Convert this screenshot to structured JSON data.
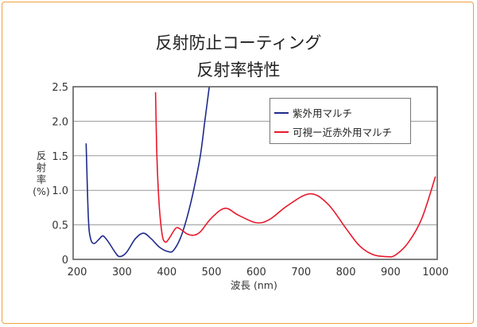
{
  "chart_data": {
    "type": "line",
    "title": "反射防止コーティング",
    "subtitle": "反射率特性",
    "xlabel": "波長 (nm)",
    "ylabel": [
      "反",
      "射",
      "率",
      "(%)"
    ],
    "xlim": [
      191,
      1004
    ],
    "ylim": [
      0,
      2.5
    ],
    "xticks": [
      200,
      300,
      400,
      500,
      600,
      700,
      800,
      900,
      1000
    ],
    "yticks": [
      0,
      0.5,
      1.0,
      1.5,
      2.0,
      2.5
    ],
    "ytick_labels": [
      "0",
      "0.5",
      "1.0",
      "1.5",
      "2.0",
      "2.5"
    ],
    "grid": true,
    "legend_position": "top-right",
    "series": [
      {
        "name": "紫外用マルチ",
        "color": "#1f2a8a",
        "x": [
          220,
          225,
          230,
          238,
          250,
          258,
          270,
          285,
          295,
          310,
          330,
          348,
          365,
          385,
          405,
          415,
          430,
          445,
          460,
          475,
          485,
          495
        ],
        "y": [
          1.68,
          0.6,
          0.3,
          0.23,
          0.3,
          0.34,
          0.25,
          0.1,
          0.04,
          0.1,
          0.3,
          0.38,
          0.3,
          0.17,
          0.11,
          0.13,
          0.3,
          0.6,
          1.0,
          1.5,
          2.0,
          2.5
        ]
      },
      {
        "name": "可視ー近赤外用マルチ",
        "color": "#e8192c",
        "x": [
          375,
          378,
          383,
          390,
          397,
          405,
          420,
          430,
          445,
          460,
          475,
          500,
          530,
          560,
          600,
          630,
          670,
          720,
          760,
          800,
          830,
          860,
          890,
          910,
          940,
          970,
          1000
        ],
        "y": [
          2.42,
          1.5,
          0.8,
          0.35,
          0.25,
          0.3,
          0.45,
          0.44,
          0.37,
          0.35,
          0.4,
          0.6,
          0.74,
          0.64,
          0.53,
          0.58,
          0.78,
          0.95,
          0.8,
          0.45,
          0.2,
          0.07,
          0.04,
          0.06,
          0.25,
          0.6,
          1.2
        ]
      }
    ]
  }
}
